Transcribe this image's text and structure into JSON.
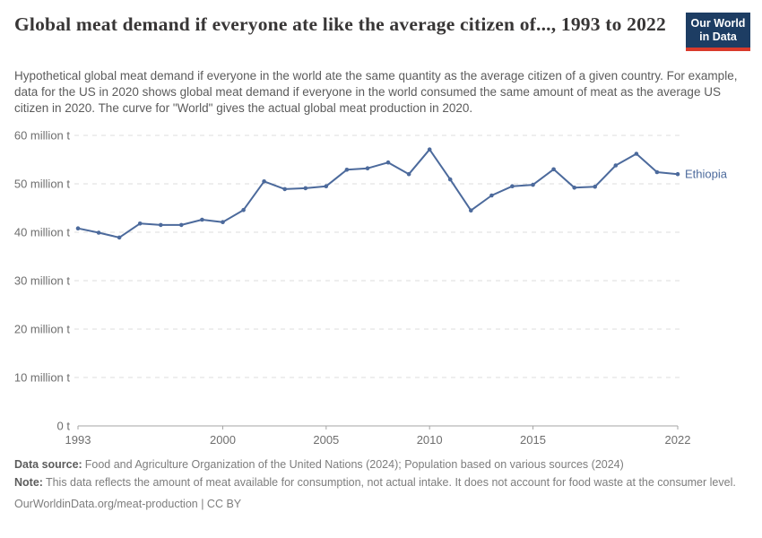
{
  "header": {
    "title": "Global meat demand if everyone ate like the average citizen of..., 1993 to 2022",
    "subtitle": "Hypothetical global meat demand if everyone in the world ate the same quantity as the average citizen of a given country. For example, data for the US in 2020 shows global meat demand if everyone in the world consumed the same amount of meat as the average US citizen in 2020. The curve for \"World\" gives the actual global meat production in 2020.",
    "logo": {
      "line1": "Our World",
      "line2": "in Data",
      "bg_color": "#1d3d63",
      "accent_color": "#d93a2b"
    }
  },
  "chart_data": {
    "type": "line",
    "title": "Global meat demand if everyone ate like the average citizen of..., 1993 to 2022",
    "unit": "million t",
    "x": [
      1993,
      1994,
      1995,
      1996,
      1997,
      1998,
      1999,
      2000,
      2001,
      2002,
      2003,
      2004,
      2005,
      2006,
      2007,
      2008,
      2009,
      2010,
      2011,
      2012,
      2013,
      2014,
      2015,
      2016,
      2017,
      2018,
      2019,
      2020,
      2021,
      2022
    ],
    "series": [
      {
        "name": "Ethiopia",
        "values": [
          40.8,
          39.9,
          38.9,
          41.8,
          41.5,
          41.5,
          42.6,
          42.1,
          44.6,
          50.5,
          48.9,
          49.1,
          49.5,
          52.9,
          53.2,
          54.4,
          52.0,
          57.1,
          50.9,
          44.5,
          47.6,
          49.5,
          49.8,
          53.0,
          49.2,
          49.4,
          53.8,
          56.2,
          52.4,
          52.0
        ]
      }
    ],
    "ylim": [
      0,
      60
    ],
    "yticks": [
      {
        "value": 0,
        "label": "0 t"
      },
      {
        "value": 10,
        "label": "10 million t"
      },
      {
        "value": 20,
        "label": "20 million t"
      },
      {
        "value": 30,
        "label": "30 million t"
      },
      {
        "value": 40,
        "label": "40 million t"
      },
      {
        "value": 50,
        "label": "50 million t"
      },
      {
        "value": 60,
        "label": "60 million t"
      }
    ],
    "xticks": [
      1993,
      2000,
      2005,
      2010,
      2015,
      2022
    ],
    "grid": "horizontal-dashed",
    "legend_position": "end-of-line-label",
    "line_color": "#4c6a9c",
    "grid_color": "#dcdcdc",
    "axis_color": "#a5a5a5",
    "tick_label_color": "#6e6e6e"
  },
  "footer": {
    "data_source_label": "Data source:",
    "data_source_text": "Food and Agriculture Organization of the United Nations (2024); Population based on various sources (2024)",
    "note_label": "Note:",
    "note_text": "This data reflects the amount of meat available for consumption, not actual intake. It does not account for food waste at the consumer level.",
    "citation": "OurWorldinData.org/meat-production | CC BY"
  }
}
